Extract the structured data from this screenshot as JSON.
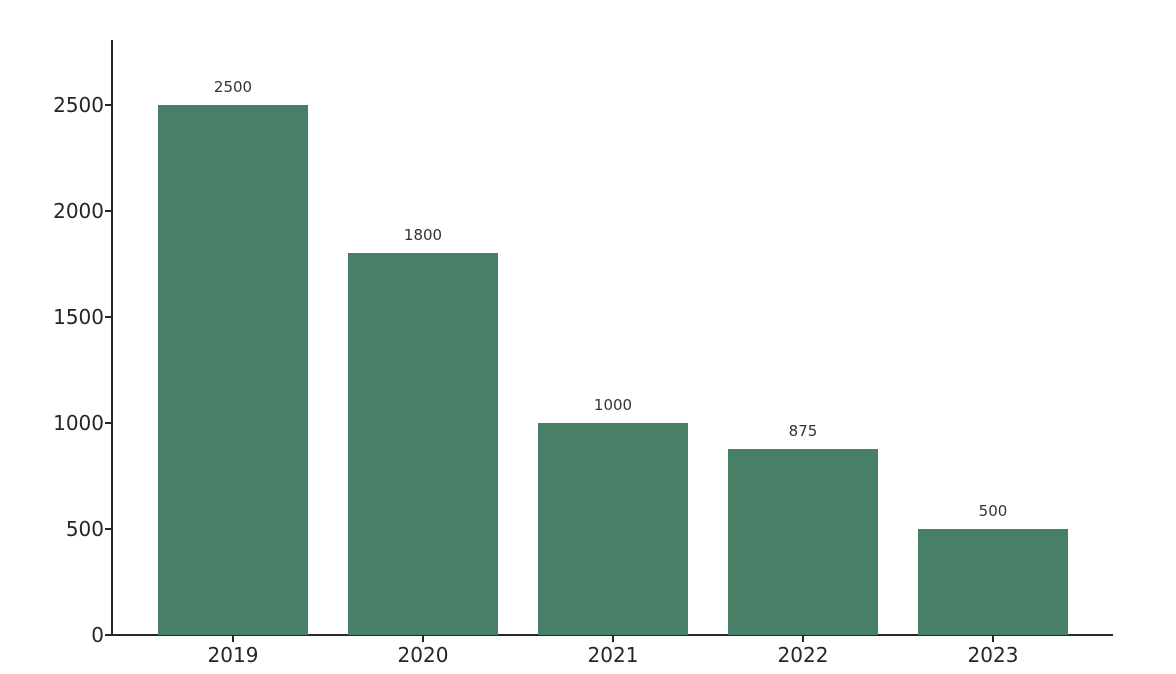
{
  "figure": {
    "background": "#ffffff"
  },
  "chart_data": {
    "type": "bar",
    "title": "",
    "xlabel": "",
    "ylabel": "",
    "categories": [
      "2019",
      "2020",
      "2021",
      "2022",
      "2023"
    ],
    "values": [
      2500,
      1800,
      1000,
      875,
      500
    ],
    "value_labels": [
      "2500",
      "1800",
      "1000",
      "875",
      "500"
    ],
    "yticks": [
      "0",
      "500",
      "1000",
      "1500",
      "2000",
      "2500"
    ],
    "ytick_values": [
      0,
      500,
      1000,
      1500,
      2000,
      2500
    ],
    "ylim": [
      0,
      2806
    ],
    "grid": false,
    "legend": false,
    "bar_color": "#478066",
    "axis_color": "#262626",
    "tick_label_color": "#262626",
    "value_label_color": "#333333"
  }
}
